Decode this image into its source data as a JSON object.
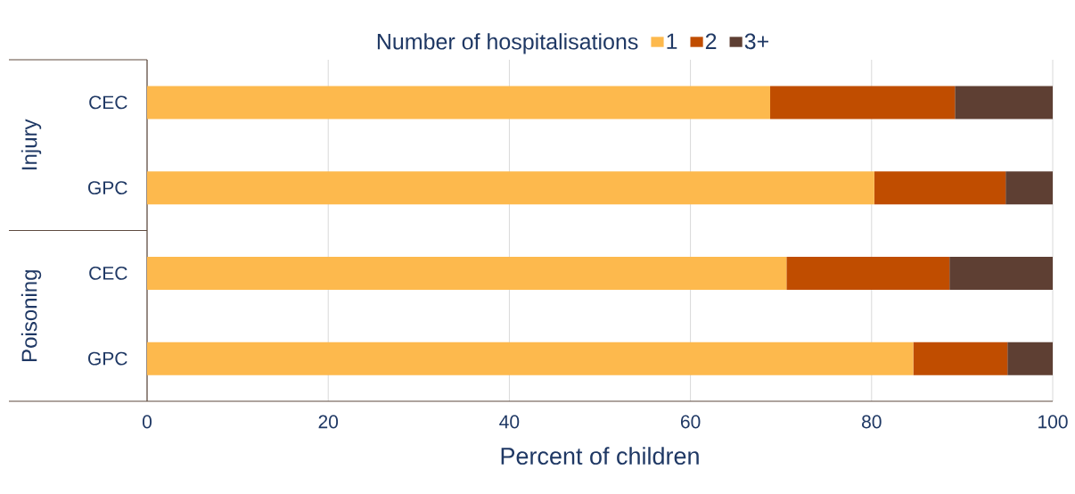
{
  "chart_data": {
    "type": "bar",
    "orientation": "horizontal",
    "stacked": true,
    "categories": [
      "CEC",
      "GPC",
      "CEC",
      "GPC"
    ],
    "series": [
      {
        "name": "1",
        "color": "#fdb94d",
        "values": [
          68.8,
          80.3,
          70.6,
          84.6
        ]
      },
      {
        "name": "2",
        "color": "#c04d00",
        "values": [
          20.4,
          14.5,
          18.0,
          10.4
        ]
      },
      {
        "name": "3+",
        "color": "#5e3f33",
        "values": [
          10.8,
          5.2,
          11.4,
          5.0
        ]
      }
    ],
    "xlim": [
      0,
      100
    ],
    "xticks": [
      0,
      20,
      40,
      60,
      80,
      100
    ],
    "xlabel": "Percent of children",
    "legend_title": "Number of hospitalisations",
    "legend": "top",
    "grid": "x",
    "annotations": [
      "Injury",
      "Poisoning"
    ]
  }
}
